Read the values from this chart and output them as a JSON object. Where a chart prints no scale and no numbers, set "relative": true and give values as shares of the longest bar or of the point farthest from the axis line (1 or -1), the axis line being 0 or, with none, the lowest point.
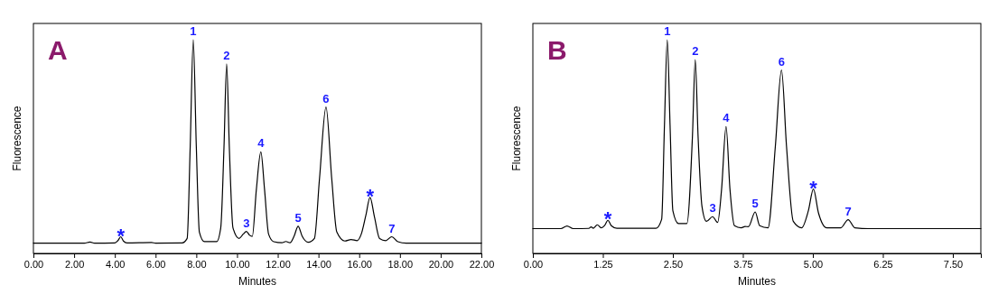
{
  "chart_data": [
    {
      "type": "line",
      "title": "A",
      "xlabel": "Minutes",
      "ylabel": "Fluorescence",
      "relative": true,
      "tick_labels": "x",
      "marker": "none",
      "line_style": "solid",
      "grid": false,
      "xlim": [
        0,
        22
      ],
      "xticks": [
        {
          "value": 0,
          "label": "0.00"
        },
        {
          "value": 2,
          "label": "2.00"
        },
        {
          "value": 4,
          "label": "4.00"
        },
        {
          "value": 6,
          "label": "6.00"
        },
        {
          "value": 8,
          "label": "8.00"
        },
        {
          "value": 10,
          "label": "10.00"
        },
        {
          "value": 12,
          "label": "12.00"
        },
        {
          "value": 14,
          "label": "14.00"
        },
        {
          "value": 16,
          "label": "16.00"
        },
        {
          "value": 18,
          "label": "18.00"
        },
        {
          "value": 20,
          "label": "20.00"
        },
        {
          "value": 22,
          "label": "22.00"
        }
      ],
      "series": [
        {
          "color": "#000000",
          "x": [
            0,
            2.5,
            2.78,
            3.0,
            4.0,
            4.15,
            4.29,
            4.42,
            4.6,
            5.8,
            6.0,
            7.3,
            7.55,
            7.7,
            7.85,
            8.0,
            8.15,
            8.4,
            9.0,
            9.2,
            9.36,
            9.49,
            9.62,
            9.8,
            10.1,
            10.3,
            10.46,
            10.62,
            10.75,
            10.95,
            11.17,
            11.35,
            11.55,
            11.8,
            12.2,
            12.4,
            12.6,
            12.8,
            13.0,
            13.2,
            13.5,
            13.8,
            14.05,
            14.37,
            14.65,
            14.9,
            15.3,
            15.6,
            15.9,
            16.1,
            16.33,
            16.53,
            16.75,
            17.0,
            17.3,
            17.6,
            17.9,
            18.3,
            20.0,
            22
          ],
          "values": [
            0.048,
            0.048,
            0.053,
            0.048,
            0.049,
            0.06,
            0.078,
            0.058,
            0.049,
            0.051,
            0.048,
            0.049,
            0.07,
            0.5,
            1.0,
            0.5,
            0.1,
            0.055,
            0.055,
            0.12,
            0.5,
            0.887,
            0.5,
            0.12,
            0.07,
            0.09,
            0.103,
            0.085,
            0.08,
            0.3,
            0.475,
            0.3,
            0.09,
            0.055,
            0.05,
            0.056,
            0.05,
            0.08,
            0.127,
            0.08,
            0.052,
            0.07,
            0.35,
            0.685,
            0.35,
            0.1,
            0.058,
            0.065,
            0.06,
            0.09,
            0.18,
            0.262,
            0.17,
            0.07,
            0.06,
            0.078,
            0.055,
            0.048,
            0.048,
            0.048
          ]
        }
      ],
      "annotations": [
        {
          "text": "*",
          "x": 4.29,
          "y": 0.078
        },
        {
          "text": "1",
          "x": 7.85,
          "y": 1.0
        },
        {
          "text": "2",
          "x": 9.49,
          "y": 0.887
        },
        {
          "text": "3",
          "x": 10.46,
          "y": 0.103
        },
        {
          "text": "4",
          "x": 11.17,
          "y": 0.475
        },
        {
          "text": "5",
          "x": 13.0,
          "y": 0.127
        },
        {
          "text": "6",
          "x": 14.37,
          "y": 0.685
        },
        {
          "text": "*",
          "x": 16.53,
          "y": 0.262
        },
        {
          "text": "7",
          "x": 17.6,
          "y": 0.078
        }
      ]
    },
    {
      "type": "line",
      "title": "B",
      "xlabel": "Minutes",
      "ylabel": "Fluorescence",
      "relative": true,
      "tick_labels": "x",
      "marker": "none",
      "line_style": "solid",
      "grid": false,
      "xlim": [
        0,
        8
      ],
      "xticks": [
        {
          "value": 0,
          "label": "0.00"
        },
        {
          "value": 1.25,
          "label": "1.25"
        },
        {
          "value": 2.5,
          "label": "2.50"
        },
        {
          "value": 3.75,
          "label": "3.75"
        },
        {
          "value": 5,
          "label": "5.00"
        },
        {
          "value": 6.25,
          "label": "6.25"
        },
        {
          "value": 7.5,
          "label": "7.50"
        }
      ],
      "series": [
        {
          "color": "#000000",
          "x": [
            0,
            0.5,
            0.61,
            0.72,
            1.0,
            1.04,
            1.08,
            1.15,
            1.22,
            1.28,
            1.34,
            1.4,
            1.5,
            2.2,
            2.3,
            2.35,
            2.4,
            2.45,
            2.5,
            2.6,
            2.75,
            2.85,
            2.9,
            2.95,
            3.02,
            3.1,
            3.21,
            3.3,
            3.37,
            3.45,
            3.52,
            3.6,
            3.72,
            3.79,
            3.85,
            3.97,
            4.05,
            4.2,
            4.33,
            4.44,
            4.53,
            4.65,
            4.8,
            4.92,
            5.01,
            5.1,
            5.25,
            5.5,
            5.63,
            5.75,
            6.0,
            8.0
          ],
          "values": [
            0.116,
            0.116,
            0.128,
            0.116,
            0.117,
            0.124,
            0.118,
            0.134,
            0.12,
            0.13,
            0.155,
            0.13,
            0.118,
            0.118,
            0.16,
            0.6,
            1.0,
            0.6,
            0.2,
            0.14,
            0.14,
            0.55,
            0.907,
            0.55,
            0.22,
            0.15,
            0.172,
            0.145,
            0.3,
            0.593,
            0.3,
            0.13,
            0.12,
            0.126,
            0.125,
            0.194,
            0.13,
            0.12,
            0.5,
            0.858,
            0.5,
            0.15,
            0.12,
            0.2,
            0.301,
            0.19,
            0.12,
            0.12,
            0.158,
            0.12,
            0.116,
            0.116
          ]
        }
      ],
      "annotations": [
        {
          "text": "*",
          "x": 1.34,
          "y": 0.155
        },
        {
          "text": "1",
          "x": 2.4,
          "y": 1.0
        },
        {
          "text": "2",
          "x": 2.9,
          "y": 0.907
        },
        {
          "text": "3",
          "x": 3.21,
          "y": 0.172
        },
        {
          "text": "4",
          "x": 3.45,
          "y": 0.593
        },
        {
          "text": "5",
          "x": 3.97,
          "y": 0.194
        },
        {
          "text": "6",
          "x": 4.44,
          "y": 0.858
        },
        {
          "text": "*",
          "x": 5.01,
          "y": 0.301
        },
        {
          "text": "7",
          "x": 5.63,
          "y": 0.158
        }
      ]
    }
  ]
}
